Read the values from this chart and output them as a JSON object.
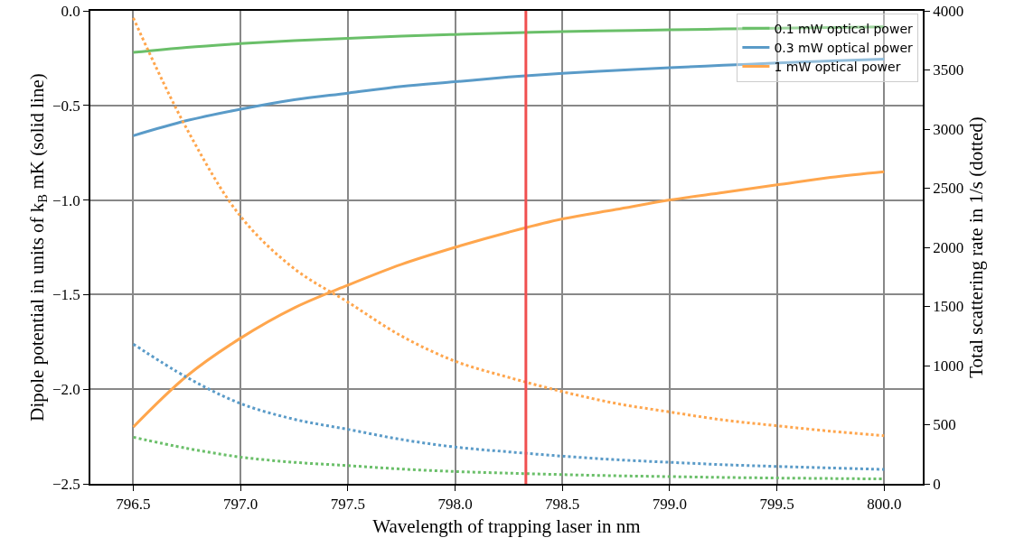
{
  "chart_data": {
    "type": "line",
    "xlabel": "Wavelength of trapping laser in nm",
    "ylabel": "Dipole potential in units of k$_{B}$ mK (solid line)",
    "y2label": "Total scattering rate in 1/s (dotted)",
    "x": [
      796.5,
      796.75,
      797,
      797.25,
      797.5,
      797.75,
      798,
      798.25,
      798.5,
      798.75,
      799,
      799.25,
      799.5,
      799.75,
      800
    ],
    "series": [
      {
        "name": "0.1 mW optical power",
        "color": "#6abf69",
        "line_style": "solid",
        "values": [
          -0.22,
          -0.193,
          -0.173,
          -0.157,
          -0.145,
          -0.134,
          -0.125,
          -0.117,
          -0.11,
          -0.105,
          -0.1,
          -0.096,
          -0.092,
          -0.088,
          -0.085
        ]
      },
      {
        "name": "0.3 mW optical power",
        "color": "#5a9bc8",
        "line_style": "solid",
        "values": [
          -0.66,
          -0.58,
          -0.52,
          -0.47,
          -0.435,
          -0.4,
          -0.375,
          -0.35,
          -0.33,
          -0.315,
          -0.3,
          -0.288,
          -0.276,
          -0.265,
          -0.255
        ]
      },
      {
        "name": "1 mW optical power",
        "color": "#ffa64d",
        "line_style": "solid",
        "values": [
          -2.2,
          -1.93,
          -1.73,
          -1.57,
          -1.45,
          -1.34,
          -1.25,
          -1.17,
          -1.1,
          -1.05,
          -1.0,
          -0.96,
          -0.92,
          -0.88,
          -0.85
        ]
      },
      {
        "color": "#6abf69",
        "line_style": "dotted",
        "axis": "y2",
        "values": [
          394,
          300,
          226,
          182,
          154,
          125,
          104,
          90,
          78,
          68,
          61,
          54,
          49,
          45,
          41
        ]
      },
      {
        "color": "#5a9bc8",
        "line_style": "dotted",
        "axis": "y2",
        "values": [
          1182,
          900,
          679,
          546,
          461,
          375,
          311,
          270,
          234,
          204,
          182,
          162,
          147,
          134,
          122
        ]
      },
      {
        "color": "#ffa64d",
        "line_style": "dotted",
        "axis": "y2",
        "values": [
          3940,
          3000,
          2262,
          1820,
          1537,
          1250,
          1037,
          900,
          780,
          680,
          608,
          540,
          491,
          445,
          406
        ]
      }
    ],
    "xlim": [
      796.3,
      800.18
    ],
    "xticks": [
      {
        "value": 796.5,
        "label": "796.5"
      },
      {
        "value": 797,
        "label": "797.0"
      },
      {
        "value": 797.5,
        "label": "797.5"
      },
      {
        "value": 798,
        "label": "798.0"
      },
      {
        "value": 798.5,
        "label": "798.5"
      },
      {
        "value": 799,
        "label": "799.0"
      },
      {
        "value": 799.5,
        "label": "799.5"
      },
      {
        "value": 800,
        "label": "800.0"
      }
    ],
    "ylim": [
      -2.5,
      0
    ],
    "yticks": [
      {
        "value": -2.5,
        "label": "−2.5"
      },
      {
        "value": -2,
        "label": "−2.0"
      },
      {
        "value": -1.5,
        "label": "−1.5"
      },
      {
        "value": -1,
        "label": "−1.0"
      },
      {
        "value": -0.5,
        "label": "−0.5"
      },
      {
        "value": 0,
        "label": "0.0"
      }
    ],
    "y2lim": [
      0,
      4000
    ],
    "y2ticks": [
      0,
      500,
      1000,
      1500,
      2000,
      2500,
      3000,
      3500,
      4000
    ],
    "ref_lines": [
      {
        "axis": "x",
        "value": 798.33,
        "color": "#f05050"
      }
    ],
    "grid": true,
    "legend": "top right"
  }
}
